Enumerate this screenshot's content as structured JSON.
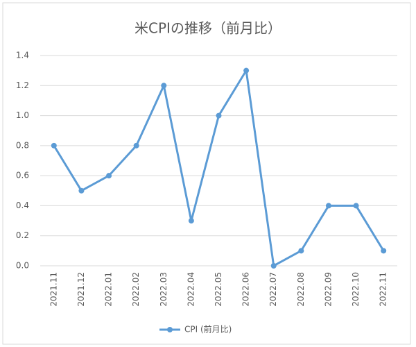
{
  "chart_data": {
    "type": "line",
    "title": "米CPIの推移（前月比）",
    "categories": [
      "2021.11",
      "2021.12",
      "2022.01",
      "2022.02",
      "2022.03",
      "2022.04",
      "2022.05",
      "2022.06",
      "2022.07",
      "2022.08",
      "2022.09",
      "2022.10",
      "2022.11"
    ],
    "series": [
      {
        "name": "CPI (前月比)",
        "color": "#5b9bd5",
        "values": [
          0.8,
          0.5,
          0.6,
          0.8,
          1.2,
          0.3,
          1.0,
          1.3,
          0.0,
          0.1,
          0.4,
          0.4,
          0.1
        ]
      }
    ],
    "ylim": [
      0,
      1.4
    ],
    "yticks": [
      {
        "value": 0,
        "label": "0.0"
      },
      0.2,
      0.4,
      0.6,
      0.8,
      {
        "value": 1,
        "label": "1.0"
      },
      1.2,
      1.4
    ],
    "grid": true,
    "legend": "bottom"
  }
}
